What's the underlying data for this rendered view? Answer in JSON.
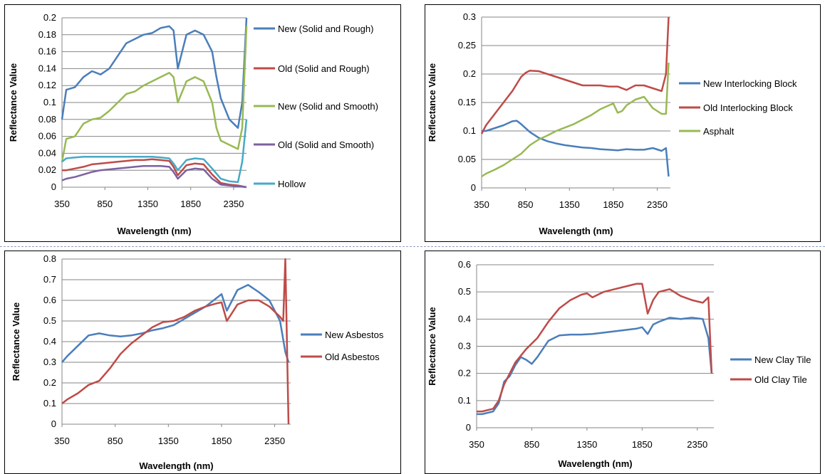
{
  "chart_data": [
    {
      "type": "line",
      "xlabel": "Wavelength (nm)",
      "ylabel": "Reflectance Value",
      "xlim": [
        350,
        2500
      ],
      "ylim": [
        0,
        0.2
      ],
      "xticks": [
        350,
        850,
        1350,
        1850,
        2350
      ],
      "yticks": [
        0,
        0.02,
        0.04,
        0.06,
        0.08,
        0.1,
        0.12,
        0.14,
        0.16,
        0.18,
        0.2
      ],
      "grid": true,
      "legend_position": "right",
      "series": [
        {
          "name": "New (Solid and Rough)",
          "color": "#4a7ebb",
          "x": [
            350,
            400,
            500,
            600,
            700,
            800,
            900,
            1000,
            1100,
            1200,
            1300,
            1400,
            1500,
            1600,
            1650,
            1700,
            1800,
            1900,
            2000,
            2100,
            2150,
            2200,
            2300,
            2400,
            2450,
            2500
          ],
          "y": [
            0.08,
            0.115,
            0.118,
            0.13,
            0.137,
            0.133,
            0.14,
            0.155,
            0.17,
            0.175,
            0.18,
            0.182,
            0.188,
            0.19,
            0.185,
            0.14,
            0.18,
            0.185,
            0.18,
            0.16,
            0.13,
            0.105,
            0.08,
            0.07,
            0.1,
            0.2
          ]
        },
        {
          "name": "Old (Solid and Rough)",
          "color": "#be4b48",
          "x": [
            350,
            400,
            500,
            600,
            700,
            800,
            900,
            1000,
            1100,
            1200,
            1300,
            1400,
            1500,
            1600,
            1650,
            1700,
            1800,
            1900,
            2000,
            2100,
            2200,
            2300,
            2400,
            2500
          ],
          "y": [
            0.02,
            0.02,
            0.022,
            0.024,
            0.027,
            0.028,
            0.029,
            0.03,
            0.031,
            0.032,
            0.032,
            0.033,
            0.032,
            0.031,
            0.024,
            0.014,
            0.026,
            0.028,
            0.027,
            0.015,
            0.005,
            0.003,
            0.002,
            0.0
          ]
        },
        {
          "name": "New (Solid and Smooth)",
          "color": "#98b954",
          "x": [
            350,
            400,
            500,
            600,
            700,
            800,
            900,
            1000,
            1100,
            1200,
            1300,
            1400,
            1500,
            1600,
            1650,
            1700,
            1800,
            1900,
            2000,
            2100,
            2150,
            2200,
            2300,
            2400,
            2450,
            2500
          ],
          "y": [
            0.03,
            0.057,
            0.06,
            0.075,
            0.08,
            0.082,
            0.09,
            0.1,
            0.11,
            0.113,
            0.12,
            0.125,
            0.13,
            0.135,
            0.13,
            0.1,
            0.125,
            0.13,
            0.125,
            0.1,
            0.07,
            0.055,
            0.05,
            0.045,
            0.07,
            0.19
          ]
        },
        {
          "name": "Old (Solid and Smooth)",
          "color": "#7d60a0",
          "x": [
            350,
            400,
            500,
            600,
            700,
            800,
            900,
            1000,
            1100,
            1200,
            1300,
            1400,
            1500,
            1600,
            1650,
            1700,
            1800,
            1900,
            2000,
            2100,
            2200,
            2300,
            2400,
            2500
          ],
          "y": [
            0.008,
            0.01,
            0.012,
            0.015,
            0.018,
            0.02,
            0.021,
            0.022,
            0.023,
            0.024,
            0.025,
            0.025,
            0.025,
            0.024,
            0.018,
            0.01,
            0.02,
            0.022,
            0.021,
            0.01,
            0.003,
            0.002,
            0.001,
            0.0
          ]
        },
        {
          "name": "Hollow",
          "color": "#46aac5",
          "x": [
            350,
            400,
            500,
            600,
            700,
            800,
            900,
            1000,
            1100,
            1200,
            1300,
            1400,
            1500,
            1600,
            1650,
            1700,
            1800,
            1900,
            2000,
            2100,
            2200,
            2300,
            2400,
            2450,
            2500
          ],
          "y": [
            0.03,
            0.034,
            0.035,
            0.036,
            0.036,
            0.036,
            0.036,
            0.036,
            0.036,
            0.036,
            0.036,
            0.036,
            0.035,
            0.034,
            0.028,
            0.02,
            0.032,
            0.034,
            0.033,
            0.022,
            0.01,
            0.007,
            0.006,
            0.03,
            0.08
          ]
        }
      ]
    },
    {
      "type": "line",
      "xlabel": "Wavelength (nm)",
      "ylabel": "Reflectance Value",
      "xlim": [
        350,
        2500
      ],
      "ylim": [
        0,
        0.3
      ],
      "xticks": [
        350,
        850,
        1350,
        1850,
        2350
      ],
      "yticks": [
        0,
        0.05,
        0.1,
        0.15,
        0.2,
        0.25,
        0.3
      ],
      "grid": true,
      "legend_position": "right",
      "series": [
        {
          "name": "New Interlocking Block",
          "color": "#4a7ebb",
          "x": [
            350,
            400,
            500,
            600,
            700,
            750,
            800,
            900,
            1000,
            1100,
            1200,
            1300,
            1400,
            1500,
            1600,
            1700,
            1800,
            1900,
            2000,
            2100,
            2200,
            2300,
            2400,
            2450,
            2480
          ],
          "y": [
            0.1,
            0.1,
            0.105,
            0.11,
            0.117,
            0.118,
            0.112,
            0.098,
            0.088,
            0.082,
            0.078,
            0.075,
            0.073,
            0.071,
            0.07,
            0.068,
            0.067,
            0.066,
            0.068,
            0.067,
            0.067,
            0.07,
            0.065,
            0.07,
            0.02
          ]
        },
        {
          "name": "Old Interlocking Block",
          "color": "#be4b48",
          "x": [
            350,
            400,
            500,
            600,
            700,
            800,
            850,
            900,
            1000,
            1100,
            1200,
            1300,
            1400,
            1500,
            1600,
            1700,
            1800,
            1900,
            2000,
            2100,
            2200,
            2300,
            2400,
            2450,
            2480
          ],
          "y": [
            0.095,
            0.11,
            0.13,
            0.15,
            0.17,
            0.195,
            0.202,
            0.206,
            0.205,
            0.2,
            0.195,
            0.19,
            0.185,
            0.18,
            0.18,
            0.18,
            0.178,
            0.178,
            0.172,
            0.18,
            0.18,
            0.175,
            0.17,
            0.2,
            0.3
          ]
        },
        {
          "name": "Asphalt",
          "color": "#98b954",
          "x": [
            350,
            400,
            500,
            600,
            700,
            800,
            900,
            1000,
            1100,
            1200,
            1300,
            1400,
            1500,
            1600,
            1700,
            1800,
            1850,
            1900,
            1950,
            2000,
            2100,
            2200,
            2300,
            2400,
            2450,
            2480
          ],
          "y": [
            0.02,
            0.025,
            0.032,
            0.04,
            0.05,
            0.06,
            0.075,
            0.085,
            0.092,
            0.1,
            0.106,
            0.112,
            0.12,
            0.128,
            0.138,
            0.145,
            0.148,
            0.132,
            0.135,
            0.145,
            0.155,
            0.16,
            0.14,
            0.13,
            0.13,
            0.22
          ]
        }
      ]
    },
    {
      "type": "line",
      "xlabel": "Wavelength (nm)",
      "ylabel": "Reflectance Value",
      "xlim": [
        350,
        2500
      ],
      "ylim": [
        0,
        0.8
      ],
      "xticks": [
        350,
        850,
        1350,
        1850,
        2350
      ],
      "yticks": [
        0,
        0.1,
        0.2,
        0.3,
        0.4,
        0.5,
        0.6,
        0.7,
        0.8
      ],
      "grid": true,
      "legend_position": "right",
      "series": [
        {
          "name": "New Asbestos",
          "color": "#4a7ebb",
          "x": [
            350,
            400,
            500,
            600,
            700,
            800,
            900,
            1000,
            1100,
            1200,
            1300,
            1400,
            1500,
            1600,
            1700,
            1800,
            1850,
            1900,
            1950,
            2000,
            2100,
            2200,
            2300,
            2400,
            2450,
            2480
          ],
          "y": [
            0.3,
            0.33,
            0.38,
            0.43,
            0.44,
            0.43,
            0.425,
            0.43,
            0.44,
            0.455,
            0.465,
            0.48,
            0.51,
            0.54,
            0.57,
            0.61,
            0.63,
            0.55,
            0.6,
            0.65,
            0.675,
            0.64,
            0.6,
            0.5,
            0.35,
            0.3
          ]
        },
        {
          "name": "Old Asbestos",
          "color": "#be4b48",
          "x": [
            350,
            400,
            500,
            600,
            700,
            800,
            900,
            1000,
            1100,
            1200,
            1300,
            1400,
            1500,
            1600,
            1700,
            1800,
            1850,
            1900,
            1950,
            2000,
            2100,
            2200,
            2300,
            2400,
            2430,
            2450,
            2480
          ],
          "y": [
            0.1,
            0.12,
            0.15,
            0.19,
            0.21,
            0.27,
            0.34,
            0.39,
            0.43,
            0.47,
            0.495,
            0.5,
            0.52,
            0.55,
            0.57,
            0.585,
            0.59,
            0.5,
            0.54,
            0.58,
            0.6,
            0.6,
            0.57,
            0.52,
            0.5,
            0.8,
            0.0
          ]
        }
      ]
    },
    {
      "type": "line",
      "xlabel": "Wavelength (nm)",
      "ylabel": "Reflectance Value",
      "xlim": [
        350,
        2500
      ],
      "ylim": [
        0,
        0.6
      ],
      "xticks": [
        350,
        850,
        1350,
        1850,
        2350
      ],
      "yticks": [
        0,
        0.1,
        0.2,
        0.3,
        0.4,
        0.5,
        0.6
      ],
      "grid": true,
      "legend_position": "right",
      "series": [
        {
          "name": "New Clay Tile",
          "color": "#4a7ebb",
          "x": [
            350,
            400,
            500,
            550,
            600,
            650,
            700,
            750,
            800,
            850,
            900,
            1000,
            1100,
            1200,
            1300,
            1400,
            1500,
            1600,
            1700,
            1800,
            1850,
            1900,
            1950,
            2000,
            2100,
            2200,
            2300,
            2400,
            2450,
            2480
          ],
          "y": [
            0.05,
            0.05,
            0.06,
            0.09,
            0.17,
            0.19,
            0.23,
            0.26,
            0.25,
            0.235,
            0.26,
            0.32,
            0.34,
            0.343,
            0.343,
            0.345,
            0.35,
            0.355,
            0.36,
            0.365,
            0.37,
            0.345,
            0.38,
            0.39,
            0.405,
            0.4,
            0.405,
            0.4,
            0.33,
            0.2
          ]
        },
        {
          "name": "Old Clay Tile",
          "color": "#be4b48",
          "x": [
            350,
            400,
            500,
            550,
            600,
            650,
            700,
            800,
            900,
            1000,
            1100,
            1200,
            1300,
            1350,
            1400,
            1500,
            1600,
            1700,
            1800,
            1850,
            1900,
            1950,
            2000,
            2100,
            2200,
            2300,
            2400,
            2450,
            2480
          ],
          "y": [
            0.06,
            0.06,
            0.07,
            0.1,
            0.16,
            0.2,
            0.24,
            0.29,
            0.33,
            0.39,
            0.44,
            0.47,
            0.49,
            0.495,
            0.48,
            0.5,
            0.51,
            0.52,
            0.53,
            0.53,
            0.42,
            0.47,
            0.5,
            0.51,
            0.485,
            0.47,
            0.46,
            0.48,
            0.2
          ]
        }
      ]
    }
  ]
}
